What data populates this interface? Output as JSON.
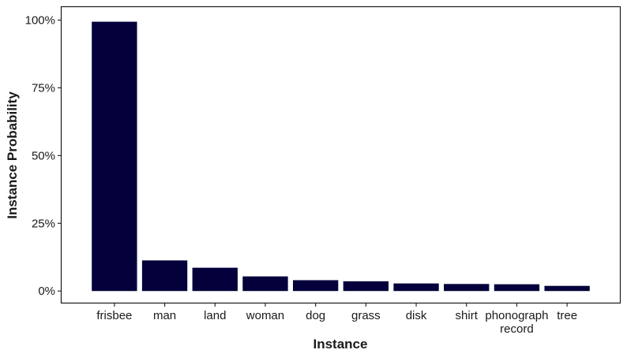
{
  "chart_data": {
    "type": "bar",
    "xlabel": "Instance",
    "ylabel": "Instance Probability",
    "categories": [
      "frisbee",
      "man",
      "land",
      "woman",
      "dog",
      "grass",
      "disk",
      "shirt",
      "phonograph record",
      "tree"
    ],
    "values": [
      99.4,
      11.3,
      8.6,
      5.4,
      4.0,
      3.6,
      2.8,
      2.6,
      2.5,
      1.9
    ],
    "value_unit": "%",
    "ylim": [
      -4.3,
      104.8
    ],
    "yticks": [
      0,
      25,
      50,
      75,
      100
    ],
    "ytick_labels": [
      "0%",
      "25%",
      "50%",
      "75%",
      "100%"
    ],
    "grid": false,
    "legend": "none",
    "colors": {
      "bar": "#03003b",
      "axis": "#1a1a1a",
      "background": "#ffffff"
    }
  }
}
